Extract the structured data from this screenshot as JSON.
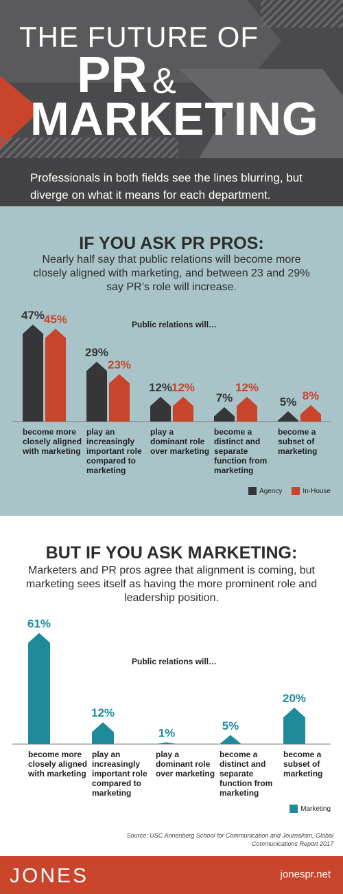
{
  "header": {
    "title_line1": "THE FUTURE OF",
    "title_pr": "PR",
    "title_amp": "&",
    "title_line3": "MARKETING",
    "subtitle": "Professionals in both fields see the lines blurring, but diverge on what it means for each department."
  },
  "section1": {
    "heading": "IF YOU ASK PR PROS:",
    "intro": "Nearly half say that public relations will become more closely aligned with marketing, and between 23 and 29% say PR’s role will increase."
  },
  "section2": {
    "heading": "BUT IF YOU ASK MARKETING:",
    "intro": "Marketers and PR pros agree that alignment is coming, but marketing sees itself as having the more prominent role and leadership position."
  },
  "chart_data": [
    {
      "type": "bar",
      "title": "Public relations will…",
      "categories": [
        "become more closely aligned with marketing",
        "play an increasingly important role compared to marketing",
        "play a dominant role over marketing",
        "become a distinct and separate function from marketing",
        "become a subset of marketing"
      ],
      "series": [
        {
          "name": "Agency",
          "color": "#363638",
          "values": [
            47,
            29,
            12,
            7,
            5
          ],
          "value_labels": [
            "47%",
            "29%",
            "12%",
            "7%",
            "5%"
          ]
        },
        {
          "name": "In-House",
          "color": "#c8442b",
          "values": [
            45,
            23,
            12,
            12,
            8
          ],
          "value_labels": [
            "45%",
            "23%",
            "12%",
            "12%",
            "8%"
          ]
        }
      ]
    },
    {
      "type": "bar",
      "title": "Public relations will…",
      "categories": [
        "become more closely aligned with marketing",
        "play an increasingly important role compared to marketing",
        "play a dominant role over marketing",
        "become a distinct and separate function from marketing",
        "become a subset of marketing"
      ],
      "series": [
        {
          "name": "Marketing",
          "color": "#1f8a9b",
          "values": [
            61,
            12,
            1,
            5,
            20
          ],
          "value_labels": [
            "61%",
            "12%",
            "1%",
            "5%",
            "20%"
          ]
        }
      ]
    }
  ],
  "footer": {
    "source": "Source: USC Annenberg School for Communication and Journalism, Global Communications Report 2017",
    "logo": "JONES",
    "url": "jonespr.net"
  }
}
